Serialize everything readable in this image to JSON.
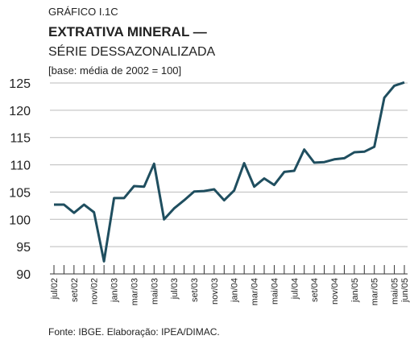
{
  "chart_data": {
    "type": "line",
    "kicker": "GRÁFICO I.1C",
    "title": "EXTRATIVA MINERAL —",
    "subtitle": "SÉRIE DESSAZONALIZADA",
    "note": "[base: média de 2002 = 100]",
    "source": "Fonte: IBGE. Elaboração: IPEA/DIMAC.",
    "categories": [
      "jul/02",
      null,
      "set/02",
      null,
      "nov/02",
      null,
      "jan/03",
      null,
      "mar/03",
      null,
      "mai/03",
      null,
      "jul/03",
      null,
      "set/03",
      null,
      "nov/03",
      null,
      "jan/04",
      null,
      "mar/04",
      null,
      "mai/04",
      null,
      "jul/04",
      null,
      "set/04",
      null,
      "nov/04",
      null,
      "jan/05",
      null,
      "mar/05",
      null,
      "mai/05",
      "jun/05"
    ],
    "series": [
      {
        "name": "Extrativa mineral",
        "color": "#1f4e5f",
        "values": [
          102.7,
          102.7,
          101.2,
          102.7,
          101.3,
          92.3,
          103.9,
          103.9,
          106.1,
          106.0,
          110.2,
          100.0,
          102.0,
          103.5,
          105.1,
          105.2,
          105.5,
          103.5,
          105.3,
          110.3,
          106.0,
          107.5,
          106.3,
          108.7,
          108.9,
          112.8,
          110.4,
          110.5,
          111.0,
          111.2,
          112.3,
          112.4,
          113.3,
          122.3,
          124.5,
          125.1
        ]
      }
    ],
    "ylim": [
      90,
      125
    ],
    "yticks": [
      90,
      95,
      100,
      105,
      110,
      115,
      120,
      125
    ],
    "grid": true
  }
}
